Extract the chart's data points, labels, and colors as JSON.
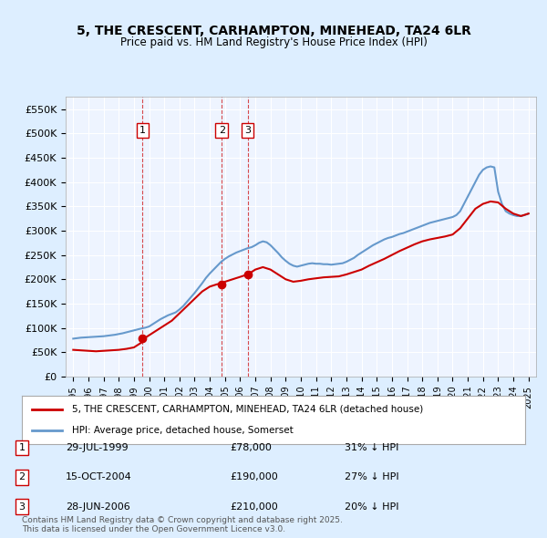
{
  "title": "5, THE CRESCENT, CARHAMPTON, MINEHEAD, TA24 6LR",
  "subtitle": "Price paid vs. HM Land Registry's House Price Index (HPI)",
  "legend_label_red": "5, THE CRESCENT, CARHAMPTON, MINEHEAD, TA24 6LR (detached house)",
  "legend_label_blue": "HPI: Average price, detached house, Somerset",
  "footer": "Contains HM Land Registry data © Crown copyright and database right 2025.\nThis data is licensed under the Open Government Licence v3.0.",
  "sales": [
    {
      "num": 1,
      "date": "29-JUL-1999",
      "price": 78000,
      "year": 1999.57,
      "hpi_pct": "31% ↓ HPI"
    },
    {
      "num": 2,
      "date": "15-OCT-2004",
      "price": 190000,
      "year": 2004.79,
      "hpi_pct": "27% ↓ HPI"
    },
    {
      "num": 3,
      "date": "28-JUN-2006",
      "price": 210000,
      "year": 2006.49,
      "hpi_pct": "20% ↓ HPI"
    }
  ],
  "red_color": "#cc0000",
  "blue_color": "#6699cc",
  "background_color": "#ddeeff",
  "plot_bg_color": "#eef4ff",
  "ylim": [
    0,
    575000
  ],
  "xlim": [
    1994.5,
    2025.5
  ],
  "yticks": [
    0,
    50000,
    100000,
    150000,
    200000,
    250000,
    300000,
    350000,
    400000,
    450000,
    500000,
    550000
  ],
  "ytick_labels": [
    "£0",
    "£50K",
    "£100K",
    "£150K",
    "£200K",
    "£250K",
    "£300K",
    "£350K",
    "£400K",
    "£450K",
    "£500K",
    "£550K"
  ],
  "hpi_years": [
    1995,
    1995.25,
    1995.5,
    1995.75,
    1996,
    1996.25,
    1996.5,
    1996.75,
    1997,
    1997.25,
    1997.5,
    1997.75,
    1998,
    1998.25,
    1998.5,
    1998.75,
    1999,
    1999.25,
    1999.5,
    1999.75,
    2000,
    2000.25,
    2000.5,
    2000.75,
    2001,
    2001.25,
    2001.5,
    2001.75,
    2002,
    2002.25,
    2002.5,
    2002.75,
    2003,
    2003.25,
    2003.5,
    2003.75,
    2004,
    2004.25,
    2004.5,
    2004.75,
    2005,
    2005.25,
    2005.5,
    2005.75,
    2006,
    2006.25,
    2006.5,
    2006.75,
    2007,
    2007.25,
    2007.5,
    2007.75,
    2008,
    2008.25,
    2008.5,
    2008.75,
    2009,
    2009.25,
    2009.5,
    2009.75,
    2010,
    2010.25,
    2010.5,
    2010.75,
    2011,
    2011.25,
    2011.5,
    2011.75,
    2012,
    2012.25,
    2012.5,
    2012.75,
    2013,
    2013.25,
    2013.5,
    2013.75,
    2014,
    2014.25,
    2014.5,
    2014.75,
    2015,
    2015.25,
    2015.5,
    2015.75,
    2016,
    2016.25,
    2016.5,
    2016.75,
    2017,
    2017.25,
    2017.5,
    2017.75,
    2018,
    2018.25,
    2018.5,
    2018.75,
    2019,
    2019.25,
    2019.5,
    2019.75,
    2020,
    2020.25,
    2020.5,
    2020.75,
    2021,
    2021.25,
    2021.5,
    2021.75,
    2022,
    2022.25,
    2022.5,
    2022.75,
    2023,
    2023.25,
    2023.5,
    2023.75,
    2024,
    2024.25,
    2024.5,
    2024.75,
    2025
  ],
  "hpi_values": [
    78000,
    79000,
    80000,
    80500,
    81000,
    81500,
    82000,
    82500,
    83000,
    84000,
    85000,
    86000,
    87500,
    89000,
    91000,
    93000,
    95000,
    97000,
    99000,
    100500,
    103000,
    108000,
    113000,
    118000,
    122000,
    126000,
    129000,
    132000,
    138000,
    145000,
    154000,
    163000,
    172000,
    182000,
    192000,
    203000,
    212000,
    220000,
    228000,
    236000,
    242000,
    247000,
    251000,
    255000,
    258000,
    261000,
    264000,
    266000,
    270000,
    275000,
    278000,
    276000,
    270000,
    262000,
    254000,
    245000,
    238000,
    232000,
    228000,
    226000,
    228000,
    230000,
    232000,
    233000,
    232000,
    232000,
    231000,
    231000,
    230000,
    231000,
    232000,
    233000,
    236000,
    240000,
    244000,
    250000,
    255000,
    260000,
    265000,
    270000,
    274000,
    278000,
    282000,
    285000,
    287000,
    290000,
    293000,
    295000,
    298000,
    301000,
    304000,
    307000,
    310000,
    313000,
    316000,
    318000,
    320000,
    322000,
    324000,
    326000,
    328000,
    332000,
    340000,
    355000,
    370000,
    385000,
    400000,
    415000,
    425000,
    430000,
    432000,
    430000,
    380000,
    355000,
    340000,
    335000,
    332000,
    330000,
    330000,
    332000,
    335000
  ],
  "red_years": [
    1995,
    1995.5,
    1996,
    1996.5,
    1997,
    1997.5,
    1998,
    1998.5,
    1999,
    1999.25,
    1999.5,
    1999.57,
    1999.75,
    2000,
    2000.5,
    2001,
    2001.5,
    2002,
    2002.5,
    2003,
    2003.5,
    2004,
    2004.5,
    2004.79,
    2005,
    2005.5,
    2006,
    2006.49,
    2006.75,
    2007,
    2007.5,
    2008,
    2008.5,
    2009,
    2009.5,
    2010,
    2010.5,
    2011,
    2011.5,
    2012,
    2012.5,
    2013,
    2013.5,
    2014,
    2014.5,
    2015,
    2015.5,
    2016,
    2016.5,
    2017,
    2017.5,
    2018,
    2018.5,
    2019,
    2019.5,
    2020,
    2020.5,
    2021,
    2021.5,
    2022,
    2022.5,
    2023,
    2023.5,
    2024,
    2024.5,
    2025
  ],
  "red_values": [
    55000,
    54000,
    53000,
    52000,
    53000,
    54000,
    55000,
    57000,
    60000,
    65000,
    70000,
    78000,
    80000,
    85000,
    95000,
    105000,
    115000,
    130000,
    145000,
    160000,
    175000,
    185000,
    190000,
    190000,
    195000,
    200000,
    205000,
    210000,
    215000,
    220000,
    225000,
    220000,
    210000,
    200000,
    195000,
    197000,
    200000,
    202000,
    204000,
    205000,
    206000,
    210000,
    215000,
    220000,
    228000,
    235000,
    242000,
    250000,
    258000,
    265000,
    272000,
    278000,
    282000,
    285000,
    288000,
    292000,
    305000,
    325000,
    345000,
    355000,
    360000,
    358000,
    345000,
    335000,
    330000,
    335000
  ]
}
